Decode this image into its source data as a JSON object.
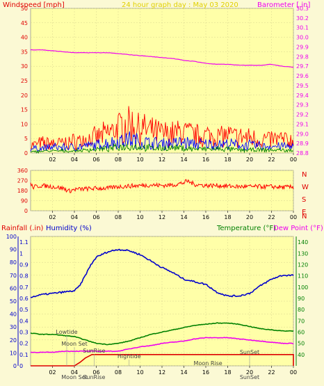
{
  "header": {
    "title": "24 hour graph day : May 03 2020"
  },
  "panels": {
    "wind": {
      "left_title": "Windspeed [mph]",
      "right_title": "Barometer [.in]"
    },
    "direction": {
      "compass": [
        "N",
        "W",
        "S",
        "E",
        "N"
      ]
    },
    "temp": {
      "rain_title": "Rainfall (.in)",
      "humidity_title": "Humidity (%)",
      "temp_title": "Temperature (°F)",
      "dew_title": "Dew Point (°F)"
    }
  },
  "colors": {
    "wind_gust": "#ff0000",
    "wind_avg": "#0000ff",
    "wind_low": "#008000",
    "barometer": "#ee00ee",
    "direction": "#ff0000",
    "humidity": "#0000cc",
    "temperature": "#008000",
    "dew_point": "#ee00ee",
    "rainfall": "#dd0000"
  },
  "chart_data": [
    {
      "type": "line",
      "name": "wind-barometer",
      "x_ticks": [
        "02",
        "04",
        "06",
        "08",
        "10",
        "12",
        "14",
        "16",
        "18",
        "20",
        "22",
        "00"
      ],
      "y_left": {
        "label": "Windspeed [mph]",
        "range": [
          0,
          50
        ],
        "ticks": [
          0,
          5,
          10,
          15,
          20,
          25,
          30,
          35,
          40,
          45,
          50
        ]
      },
      "y_right": {
        "label": "Barometer [.in]",
        "range": [
          28.8,
          30.3
        ],
        "ticks": [
          28.8,
          28.9,
          29.0,
          29.1,
          29.2,
          29.3,
          29.4,
          29.5,
          29.6,
          29.7,
          29.8,
          29.9,
          30.0,
          30.1,
          30.2,
          30.3
        ]
      },
      "series": [
        {
          "name": "Barometer",
          "axis": "right",
          "x": [
            0,
            1,
            2,
            3,
            4,
            5,
            6,
            7,
            8,
            9,
            10,
            11,
            12,
            13,
            14,
            15,
            16,
            17,
            18,
            19,
            20,
            21,
            22,
            23,
            24
          ],
          "values": [
            29.87,
            29.87,
            29.86,
            29.85,
            29.84,
            29.84,
            29.84,
            29.84,
            29.83,
            29.82,
            29.81,
            29.8,
            29.79,
            29.78,
            29.76,
            29.75,
            29.73,
            29.72,
            29.72,
            29.71,
            29.71,
            29.71,
            29.72,
            29.7,
            29.69
          ]
        },
        {
          "name": "Wind gust envelope",
          "axis": "left",
          "x": [
            0,
            1,
            2,
            3,
            4,
            5,
            6,
            7,
            8,
            9,
            10,
            11,
            12,
            13,
            14,
            15,
            16,
            17,
            18,
            19,
            20,
            21,
            22,
            23,
            24
          ],
          "values": [
            4,
            5,
            5,
            5,
            6,
            7,
            8,
            10,
            13,
            15,
            13,
            11,
            10,
            10,
            11,
            9,
            9,
            9,
            9,
            8,
            8,
            7,
            7,
            7,
            6
          ]
        },
        {
          "name": "Wind average",
          "axis": "left",
          "x": [
            0,
            1,
            2,
            3,
            4,
            5,
            6,
            7,
            8,
            9,
            10,
            11,
            12,
            13,
            14,
            15,
            16,
            17,
            18,
            19,
            20,
            21,
            22,
            23,
            24
          ],
          "values": [
            2,
            2.5,
            3,
            3,
            3,
            3.5,
            4,
            5,
            6,
            7,
            6,
            5,
            5,
            5,
            5.5,
            4.5,
            4.5,
            4.5,
            4.5,
            4,
            4,
            3.5,
            3.5,
            3.5,
            3
          ]
        },
        {
          "name": "Wind low",
          "axis": "left",
          "x": [
            0,
            1,
            2,
            3,
            4,
            5,
            6,
            7,
            8,
            9,
            10,
            11,
            12,
            13,
            14,
            15,
            16,
            17,
            18,
            19,
            20,
            21,
            22,
            23,
            24
          ],
          "values": [
            0.5,
            1,
            1,
            1,
            1,
            1.5,
            2,
            2,
            3,
            3.5,
            3,
            2.5,
            2.5,
            2.5,
            2.5,
            2,
            2,
            2,
            2,
            1.5,
            1.5,
            1.5,
            1.5,
            1.5,
            1
          ]
        }
      ]
    },
    {
      "type": "line",
      "name": "wind-direction",
      "x_ticks": [
        "02",
        "04",
        "06",
        "08",
        "10",
        "12",
        "14",
        "16",
        "18",
        "20",
        "22",
        "00"
      ],
      "y_left": {
        "range": [
          0,
          360
        ],
        "ticks": [
          0,
          90,
          180,
          270,
          360
        ]
      },
      "series": [
        {
          "name": "Wind direction",
          "x": [
            0,
            0.2,
            1,
            2,
            3,
            3.5,
            4,
            5,
            6,
            7,
            8,
            9,
            10,
            11,
            12,
            13,
            14,
            14.3,
            15,
            16,
            17,
            18,
            19,
            20,
            21,
            22,
            23,
            24
          ],
          "values": [
            240,
            210,
            225,
            215,
            200,
            175,
            190,
            195,
            200,
            200,
            215,
            220,
            225,
            230,
            225,
            230,
            250,
            265,
            235,
            225,
            225,
            220,
            215,
            215,
            215,
            215,
            210,
            210
          ]
        }
      ]
    },
    {
      "type": "line",
      "name": "temperature-humidity",
      "x_ticks": [
        "02",
        "04",
        "06",
        "08",
        "10",
        "12",
        "14",
        "16",
        "18",
        "20",
        "22",
        "00"
      ],
      "y_rain": {
        "label": "Rainfall (.in)",
        "range": [
          0,
          1.15
        ],
        "ticks": [
          0,
          0.1,
          0.2,
          0.3,
          0.4,
          0.5,
          0.6,
          0.7,
          0.8,
          0.9,
          1,
          1.1
        ]
      },
      "y_humidity": {
        "label": "Humidity (%)",
        "range": [
          0,
          100
        ],
        "ticks": [
          0,
          10,
          20,
          30,
          40,
          50,
          60,
          70,
          80,
          90,
          100
        ]
      },
      "y_temp": {
        "label": "Temperature (°F)",
        "range": [
          30,
          145
        ],
        "ticks": [
          40,
          50,
          60,
          70,
          80,
          90,
          100,
          110,
          120,
          130,
          140
        ]
      },
      "series": [
        {
          "name": "Humidity",
          "axis": "humidity",
          "x": [
            0,
            1,
            2,
            3,
            4,
            4.5,
            5,
            5.5,
            6,
            7,
            8,
            9,
            10,
            11,
            12,
            13,
            14,
            15,
            16,
            17,
            18,
            19,
            20,
            21,
            22,
            23,
            24
          ],
          "values": [
            53,
            55,
            56,
            57,
            58,
            62,
            70,
            78,
            84,
            88,
            90,
            89,
            86,
            81,
            76,
            72,
            67,
            65,
            63,
            57,
            54,
            54,
            56,
            62,
            67,
            70,
            70
          ]
        },
        {
          "name": "Temperature",
          "axis": "temp",
          "x": [
            0,
            1,
            2,
            3,
            4,
            5,
            6,
            7,
            8,
            9,
            10,
            11,
            12,
            13,
            14,
            15,
            16,
            17,
            18,
            19,
            20,
            21,
            22,
            23,
            24
          ],
          "values": [
            59,
            58,
            58,
            57,
            56,
            53,
            50,
            49,
            50,
            52,
            55,
            58,
            60,
            62,
            64,
            66,
            67,
            68,
            68,
            67,
            65,
            63,
            62,
            61,
            61
          ]
        },
        {
          "name": "Dew Point",
          "axis": "temp",
          "x": [
            0,
            1,
            2,
            3,
            4,
            5,
            6,
            7,
            8,
            9,
            10,
            11,
            12,
            13,
            14,
            15,
            16,
            17,
            18,
            19,
            20,
            21,
            22,
            23,
            24
          ],
          "values": [
            42,
            42,
            42,
            43,
            43,
            43,
            43,
            43,
            43,
            45,
            47,
            48,
            50,
            51,
            52,
            54,
            55,
            55,
            55,
            54,
            53,
            52,
            51,
            50,
            50
          ]
        },
        {
          "name": "Rainfall",
          "axis": "rain",
          "x": [
            0,
            4,
            4.5,
            5,
            5.6,
            6,
            12,
            18,
            24,
            24.1
          ],
          "values": [
            0,
            0,
            0.03,
            0.07,
            0.1,
            0.1,
            0.1,
            0.1,
            0.1,
            0
          ]
        }
      ],
      "annotations": [
        {
          "label": "Lowtide",
          "x": 3.3
        },
        {
          "label": "Moon Set",
          "x": 4.0
        },
        {
          "label": "SunRise",
          "x": 5.8
        },
        {
          "label": "Hightide",
          "x": 9.0
        },
        {
          "label": "Moon Rise",
          "x": 16.2
        },
        {
          "label": "SunSet",
          "x": 20.0
        }
      ],
      "bottom_labels": [
        {
          "label": "Moon Set",
          "x": 4.0
        },
        {
          "label": "SunRise",
          "x": 5.8
        },
        {
          "label": "SunSet",
          "x": 20.0
        }
      ]
    }
  ]
}
